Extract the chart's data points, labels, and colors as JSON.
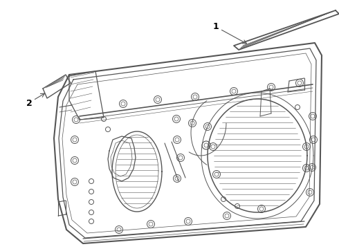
{
  "background_color": "#ffffff",
  "line_color": "#555555",
  "label_color": "#000000",
  "label_fontsize": 9,
  "figsize": [
    4.9,
    3.6
  ],
  "dpi": 100
}
